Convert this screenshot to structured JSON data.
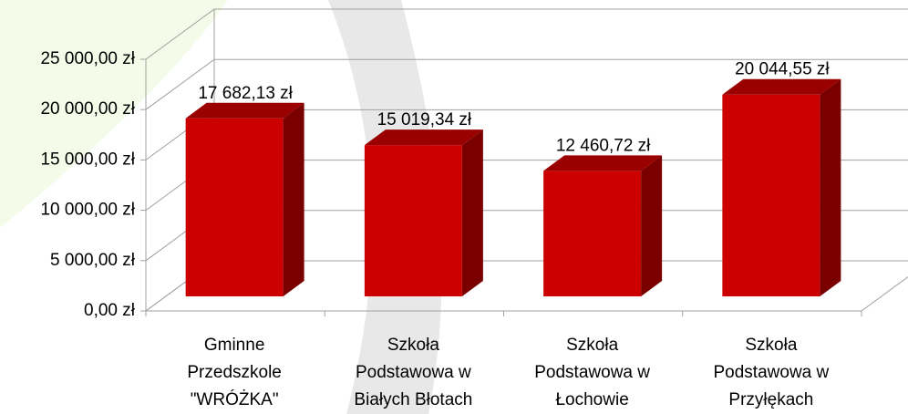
{
  "chart_data": {
    "type": "bar3d",
    "categories": [
      "Gminne\nPrzedszkole\n\"WRÓŻKA\"",
      "Szkoła\nPodstawowa w\nBiałych Błotach",
      "Szkoła\nPodstawowa w\nŁochowie",
      "Szkoła\nPodstawowa w\nPrzyłękach"
    ],
    "values": [
      17682.13,
      15019.34,
      12460.72,
      20044.55
    ],
    "value_labels": [
      "17 682,13 zł",
      "15 019,34 zł",
      "12 460,72 zł",
      "20 044,55 zł"
    ],
    "color": "#cc0000",
    "ylim": [
      0,
      25000
    ],
    "yticks": [
      {
        "value": 0,
        "label": "0,00 zł"
      },
      {
        "value": 5000,
        "label": "5 000,00 zł"
      },
      {
        "value": 10000,
        "label": "10 000,00 zł"
      },
      {
        "value": 15000,
        "label": "15 000,00 zł"
      },
      {
        "value": 20000,
        "label": "20 000,00 zł"
      },
      {
        "value": 25000,
        "label": "25 000,00 zł"
      }
    ],
    "grid": true
  }
}
